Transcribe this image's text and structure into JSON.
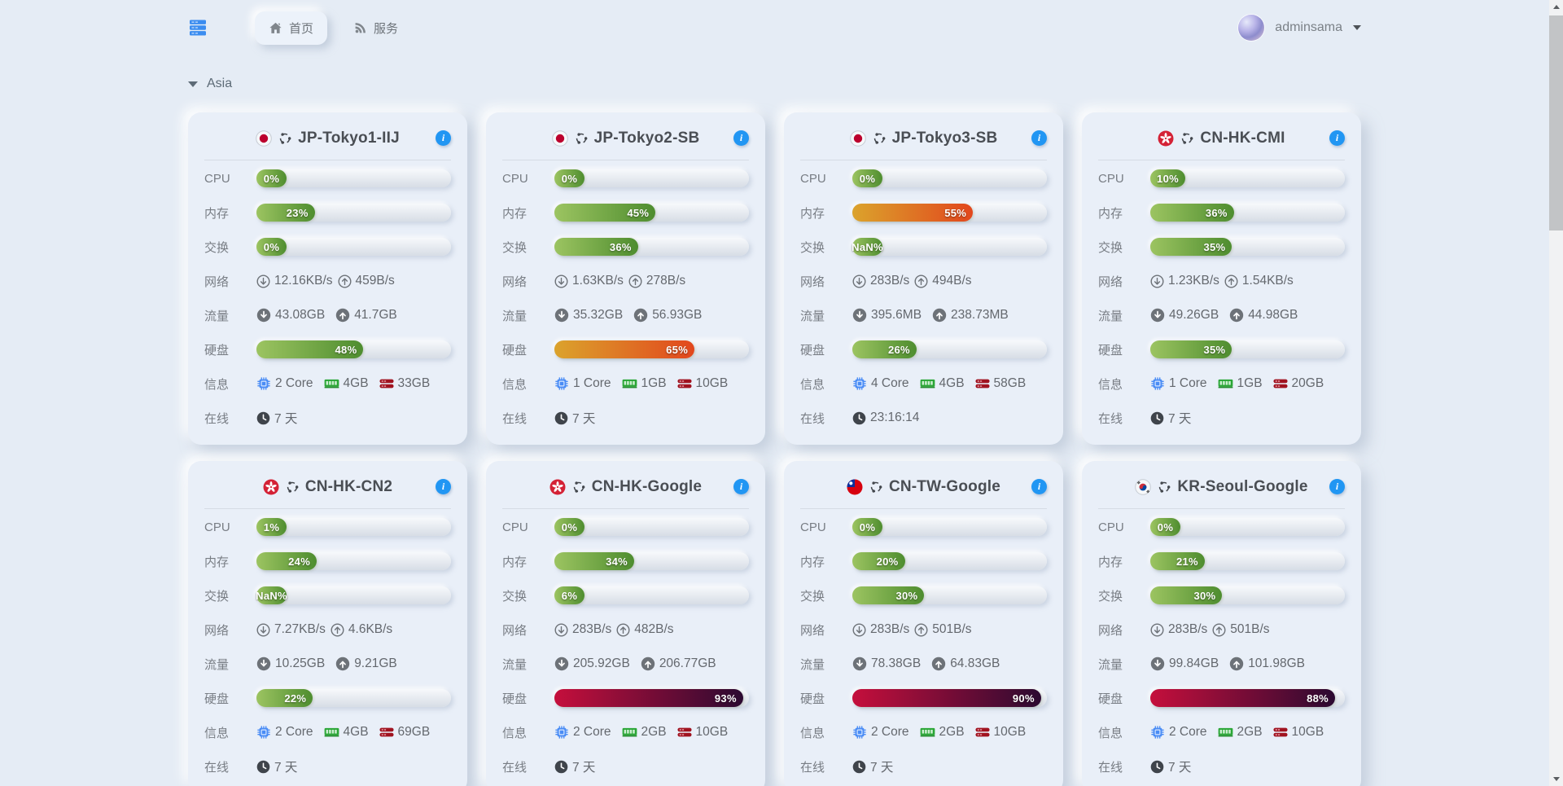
{
  "nav": {
    "home_label": "首页",
    "services_label": "服务",
    "username": "adminsama"
  },
  "section": {
    "title": "Asia"
  },
  "labels": {
    "cpu": "CPU",
    "mem": "内存",
    "swap": "交换",
    "net": "网络",
    "traffic": "流量",
    "disk": "硬盘",
    "info": "信息",
    "online": "在线"
  },
  "icons": {
    "info_glyph": "i",
    "logo": "server-stack-icon",
    "home": "home-icon",
    "services": "rss-icon",
    "net_down": "circle-arrow-down-outline-icon",
    "net_up": "circle-arrow-up-outline-icon",
    "traffic_down": "circle-arrow-down-filled-icon",
    "traffic_up": "circle-arrow-up-filled-icon",
    "cores": "cpu-chip-icon",
    "ram": "memory-icon",
    "storage": "hard-drive-icon",
    "online": "clock-icon"
  },
  "colors": {
    "accent_blue": "#2196f3",
    "page_bg": "#e5ecf5",
    "card_bg": "#e9eff8",
    "bar_green": "#4e8d2f",
    "bar_orange": "#e2471d",
    "bar_red": "#c50f3c"
  },
  "servers": [
    {
      "name": "JP-Tokyo1-IIJ",
      "flag": "jp",
      "cpu": "0%",
      "mem": "23%",
      "swap": "0%",
      "net_down": "12.16KB/s",
      "net_up": "459B/s",
      "traffic_down": "43.08GB",
      "traffic_up": "41.7GB",
      "disk": "48%",
      "cores": "2 Core",
      "ram": "4GB",
      "storage": "33GB",
      "online": "7 天"
    },
    {
      "name": "JP-Tokyo2-SB",
      "flag": "jp",
      "cpu": "0%",
      "mem": "45%",
      "swap": "36%",
      "net_down": "1.63KB/s",
      "net_up": "278B/s",
      "traffic_down": "35.32GB",
      "traffic_up": "56.93GB",
      "disk": "65%",
      "cores": "1 Core",
      "ram": "1GB",
      "storage": "10GB",
      "online": "7 天"
    },
    {
      "name": "JP-Tokyo3-SB",
      "flag": "jp",
      "cpu": "0%",
      "mem": "55%",
      "swap": "NaN%",
      "net_down": "283B/s",
      "net_up": "494B/s",
      "traffic_down": "395.6MB",
      "traffic_up": "238.73MB",
      "disk": "26%",
      "cores": "4 Core",
      "ram": "4GB",
      "storage": "58GB",
      "online": "23:16:14"
    },
    {
      "name": "CN-HK-CMI",
      "flag": "hk",
      "cpu": "10%",
      "mem": "36%",
      "swap": "35%",
      "net_down": "1.23KB/s",
      "net_up": "1.54KB/s",
      "traffic_down": "49.26GB",
      "traffic_up": "44.98GB",
      "disk": "35%",
      "cores": "1 Core",
      "ram": "1GB",
      "storage": "20GB",
      "online": "7 天"
    },
    {
      "name": "CN-HK-CN2",
      "flag": "hk",
      "cpu": "1%",
      "mem": "24%",
      "swap": "NaN%",
      "net_down": "7.27KB/s",
      "net_up": "4.6KB/s",
      "traffic_down": "10.25GB",
      "traffic_up": "9.21GB",
      "disk": "22%",
      "cores": "2 Core",
      "ram": "4GB",
      "storage": "69GB",
      "online": "7 天"
    },
    {
      "name": "CN-HK-Google",
      "flag": "hk",
      "cpu": "0%",
      "mem": "34%",
      "swap": "6%",
      "net_down": "283B/s",
      "net_up": "482B/s",
      "traffic_down": "205.92GB",
      "traffic_up": "206.77GB",
      "disk": "93%",
      "cores": "2 Core",
      "ram": "2GB",
      "storage": "10GB",
      "online": "7 天"
    },
    {
      "name": "CN-TW-Google",
      "flag": "tw",
      "cpu": "0%",
      "mem": "20%",
      "swap": "30%",
      "net_down": "283B/s",
      "net_up": "501B/s",
      "traffic_down": "78.38GB",
      "traffic_up": "64.83GB",
      "disk": "90%",
      "cores": "2 Core",
      "ram": "2GB",
      "storage": "10GB",
      "online": "7 天"
    },
    {
      "name": "KR-Seoul-Google",
      "flag": "kr",
      "cpu": "0%",
      "mem": "21%",
      "swap": "30%",
      "net_down": "283B/s",
      "net_up": "501B/s",
      "traffic_down": "99.84GB",
      "traffic_up": "101.98GB",
      "disk": "88%",
      "cores": "2 Core",
      "ram": "2GB",
      "storage": "10GB",
      "online": "7 天"
    }
  ]
}
